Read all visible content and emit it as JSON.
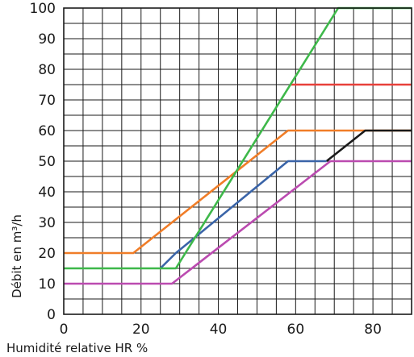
{
  "chart_data": {
    "type": "line",
    "title": "",
    "xlabel": "Humidité relative HR %",
    "ylabel": "Débit en m³/h",
    "xlim": [
      0,
      90
    ],
    "ylim": [
      0,
      100
    ],
    "x_ticks": [
      0,
      20,
      40,
      60,
      80
    ],
    "y_ticks": [
      0,
      10,
      20,
      30,
      40,
      50,
      60,
      70,
      80,
      90,
      100
    ],
    "grid": true,
    "grid_minor_x_step": 5,
    "grid_minor_y_step": 5,
    "legend": "none",
    "series": [
      {
        "color": "#e8403a",
        "points": [
          [
            58.5,
            75
          ],
          [
            90,
            75
          ]
        ]
      },
      {
        "color": "#f07d28",
        "points": [
          [
            0,
            20
          ],
          [
            18,
            20
          ],
          [
            58,
            60
          ],
          [
            90,
            60
          ]
        ]
      },
      {
        "color": "#1a1a1a",
        "points": [
          [
            68,
            50
          ],
          [
            78,
            60
          ],
          [
            90,
            60
          ]
        ]
      },
      {
        "color": "#3a64a8",
        "points": [
          [
            25,
            15
          ],
          [
            29,
            20
          ],
          [
            58,
            50
          ],
          [
            68,
            50
          ]
        ]
      },
      {
        "color": "#bb4bb0",
        "points": [
          [
            0,
            10
          ],
          [
            28,
            10
          ],
          [
            69,
            50
          ],
          [
            90,
            50
          ]
        ]
      },
      {
        "color": "#3eb84a",
        "points": [
          [
            0,
            15
          ],
          [
            29,
            15
          ],
          [
            71,
            100
          ],
          [
            90,
            100
          ]
        ]
      }
    ]
  }
}
